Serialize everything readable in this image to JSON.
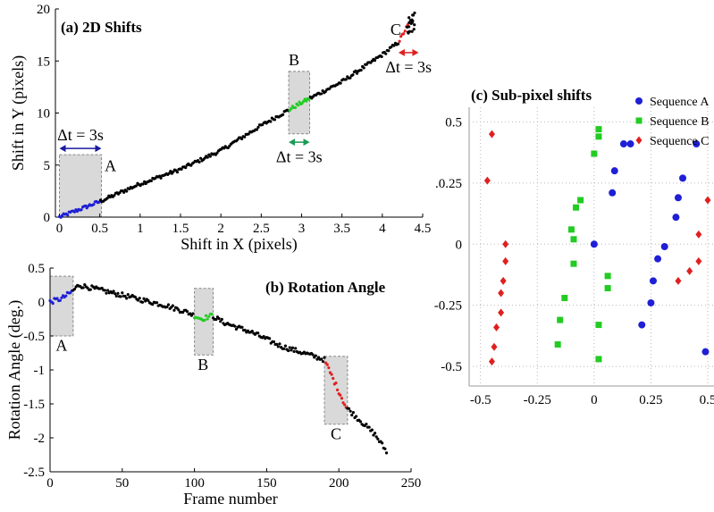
{
  "colors": {
    "black": "#000000",
    "blue": "#1f1fd6",
    "green": "#22cc22",
    "red": "#e02020",
    "zone": "#d9d9d9",
    "arrow_blue": "#1a1aa0",
    "arrow_green": "#1a9a55",
    "arrow_red": "#e02020"
  },
  "chart_data": [
    {
      "id": "a",
      "type": "scatter",
      "title": "(a) 2D Shifts",
      "xlabel": "Shift in X  (pixels)",
      "ylabel": "Shift in Y (pixels)",
      "xlim": [
        -0.05,
        4.5
      ],
      "ylim": [
        0,
        20
      ],
      "xticks": [
        0,
        0.5,
        1,
        1.5,
        2,
        2.5,
        3,
        3.5,
        4,
        4.5
      ],
      "yticks": [
        0,
        5,
        10,
        15,
        20
      ],
      "trajectory": {
        "x": [
          0,
          0.5,
          1,
          1.5,
          2,
          2.5,
          3,
          3.5,
          4,
          4.2,
          4.3,
          4.4
        ],
        "y": [
          0,
          1.5,
          3.2,
          4.6,
          6.4,
          8.8,
          11,
          13,
          15.6,
          16.8,
          18.2,
          19.5
        ]
      },
      "segments": [
        {
          "name": "A",
          "color": "blue",
          "x0": 0,
          "x1": 0.5
        },
        {
          "name": "B",
          "color": "green",
          "x0": 2.85,
          "x1": 3.1
        },
        {
          "name": "C",
          "color": "red",
          "x0": 4.2,
          "x1": 4.32
        }
      ],
      "zones": [
        {
          "label": "A",
          "x0": 0,
          "x1": 0.52,
          "y0": 0,
          "y1": 6
        },
        {
          "label": "B",
          "x0": 2.84,
          "x1": 3.1,
          "y0": 8,
          "y1": 14
        }
      ],
      "annotations": [
        {
          "text": "Δt = 3s",
          "color": "arrow_blue",
          "x0": 0,
          "x1": 0.52,
          "y": 6.6,
          "label_y": 7.4
        },
        {
          "text": "Δt = 3s",
          "color": "arrow_green",
          "x0": 2.84,
          "x1": 3.1,
          "y": 7.2,
          "label_y": 5.3
        },
        {
          "text": "Δt = 3s",
          "color": "arrow_red",
          "x0": 4.2,
          "x1": 4.45,
          "y": 15.8,
          "label_y": 13.9
        }
      ],
      "point_labels": [
        {
          "text": "A",
          "x": 0.56,
          "y": 4.4
        },
        {
          "text": "B",
          "x": 2.84,
          "y": 14.6
        },
        {
          "text": "C",
          "x": 4.1,
          "y": 17.5
        }
      ]
    },
    {
      "id": "b",
      "type": "scatter",
      "title": "(b) Rotation Angle",
      "xlabel": "Frame number",
      "ylabel": "Rotation Angle (deg.)",
      "xlim": [
        0,
        250
      ],
      "ylim": [
        -2.5,
        0.5
      ],
      "xticks": [
        0,
        50,
        100,
        150,
        200,
        250
      ],
      "yticks": [
        -2.5,
        -2,
        -1.5,
        -1,
        -0.5,
        0,
        0.5
      ],
      "ytick_labels": [
        "-2.5",
        "-2",
        "-1.5",
        "-1",
        "-0.5",
        "0",
        "0.5"
      ],
      "trajectory": {
        "x": [
          0,
          8,
          15,
          20,
          40,
          60,
          80,
          95,
          105,
          112,
          120,
          140,
          160,
          180,
          190,
          205,
          215,
          225,
          233
        ],
        "y": [
          0,
          0.05,
          0.15,
          0.25,
          0.15,
          0.05,
          -0.05,
          -0.15,
          -0.25,
          -0.2,
          -0.3,
          -0.45,
          -0.65,
          -0.78,
          -0.85,
          -1.55,
          -1.75,
          -1.95,
          -2.2
        ]
      },
      "segments": [
        {
          "name": "A",
          "color": "blue",
          "x0": 0,
          "x1": 15
        },
        {
          "name": "B",
          "color": "green",
          "x0": 100,
          "x1": 112
        },
        {
          "name": "C",
          "color": "red",
          "x0": 191,
          "x1": 205
        }
      ],
      "zones": [
        {
          "label": "A",
          "x0": 0,
          "x1": 16,
          "y0": -0.5,
          "y1": 0.38
        },
        {
          "label": "B",
          "x0": 100,
          "x1": 113,
          "y0": -0.78,
          "y1": 0.2
        },
        {
          "label": "C",
          "x0": 190,
          "x1": 206,
          "y0": -1.8,
          "y1": -0.8
        }
      ],
      "point_labels": [
        {
          "text": "A",
          "x": 8,
          "y": -0.72
        },
        {
          "text": "B",
          "x": 106,
          "y": -1.0
        },
        {
          "text": "C",
          "x": 198,
          "y": -2.02
        }
      ]
    },
    {
      "id": "c",
      "type": "scatter",
      "title": "(c) Sub-pixel shifts",
      "xlim": [
        -0.55,
        0.5
      ],
      "ylim": [
        -0.58,
        0.56
      ],
      "xticks": [
        -0.5,
        -0.25,
        0,
        0.25,
        0.5
      ],
      "xtick_labels": [
        "-0.5",
        "-0.25",
        "0",
        "0.25",
        "0.5"
      ],
      "yticks": [
        -0.5,
        -0.25,
        0,
        0.25,
        0.5
      ],
      "ytick_labels": [
        "-0.5",
        "-0.25",
        "0",
        ".0.25",
        "0.5"
      ],
      "grid": true,
      "legend": {
        "placement": "top-right"
      },
      "series": [
        {
          "name": "Sequence A",
          "color": "blue",
          "marker": "circle",
          "points": [
            [
              0.13,
              0.41
            ],
            [
              0.16,
              0.41
            ],
            [
              0.45,
              0.41
            ],
            [
              0.09,
              0.3
            ],
            [
              0.39,
              0.27
            ],
            [
              0.08,
              0.21
            ],
            [
              0.37,
              0.19
            ],
            [
              0.36,
              0.11
            ],
            [
              0.31,
              -0.01
            ],
            [
              0,
              0
            ],
            [
              0.28,
              -0.06
            ],
            [
              0.26,
              -0.15
            ],
            [
              0.25,
              -0.24
            ],
            [
              0.21,
              -0.33
            ],
            [
              0.49,
              -0.44
            ]
          ]
        },
        {
          "name": "Sequence B",
          "color": "green",
          "marker": "square",
          "points": [
            [
              0.02,
              0.47
            ],
            [
              0.02,
              0.44
            ],
            [
              0,
              0.37
            ],
            [
              -0.06,
              0.18
            ],
            [
              -0.08,
              0.15
            ],
            [
              -0.1,
              0.06
            ],
            [
              -0.09,
              0.02
            ],
            [
              -0.09,
              -0.08
            ],
            [
              0.06,
              -0.13
            ],
            [
              0.06,
              -0.18
            ],
            [
              -0.13,
              -0.22
            ],
            [
              -0.15,
              -0.31
            ],
            [
              0.02,
              -0.33
            ],
            [
              -0.16,
              -0.41
            ],
            [
              0.02,
              -0.47
            ]
          ]
        },
        {
          "name": "Sequence C",
          "color": "red",
          "marker": "diamond",
          "points": [
            [
              -0.45,
              0.45
            ],
            [
              -0.47,
              0.26
            ],
            [
              -0.39,
              0
            ],
            [
              -0.39,
              -0.07
            ],
            [
              -0.4,
              -0.15
            ],
            [
              -0.41,
              -0.2
            ],
            [
              -0.41,
              -0.28
            ],
            [
              -0.43,
              -0.34
            ],
            [
              -0.44,
              -0.42
            ],
            [
              -0.45,
              -0.48
            ],
            [
              0.5,
              0.18
            ],
            [
              0.46,
              0.04
            ],
            [
              0.46,
              -0.07
            ],
            [
              0.42,
              -0.11
            ],
            [
              0.37,
              -0.15
            ]
          ]
        }
      ]
    }
  ]
}
